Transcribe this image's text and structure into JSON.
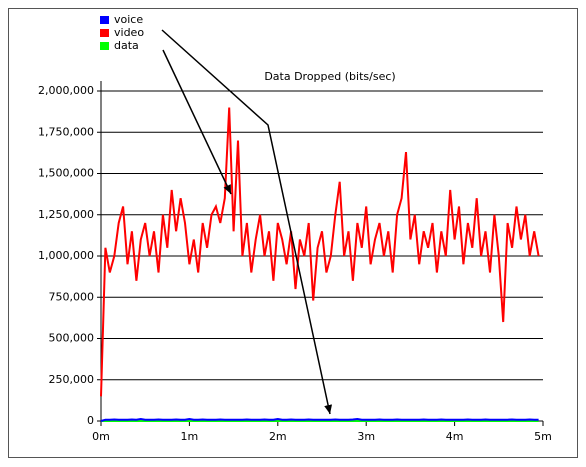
{
  "chart_data": {
    "type": "line",
    "title": "Data Dropped (bits/sec)",
    "x": [
      0,
      0.05,
      0.1,
      0.15,
      0.2,
      0.25,
      0.3,
      0.35,
      0.4,
      0.45,
      0.5,
      0.55,
      0.6,
      0.65,
      0.7,
      0.75,
      0.8,
      0.85,
      0.9,
      0.95,
      1,
      1.05,
      1.1,
      1.15,
      1.2,
      1.25,
      1.3,
      1.35,
      1.4,
      1.45,
      1.5,
      1.55,
      1.6,
      1.65,
      1.7,
      1.75,
      1.8,
      1.85,
      1.9,
      1.95,
      2,
      2.05,
      2.1,
      2.15,
      2.2,
      2.25,
      2.3,
      2.35,
      2.4,
      2.45,
      2.5,
      2.55,
      2.6,
      2.65,
      2.7,
      2.75,
      2.8,
      2.85,
      2.9,
      2.95,
      3,
      3.05,
      3.1,
      3.15,
      3.2,
      3.25,
      3.3,
      3.35,
      3.4,
      3.45,
      3.5,
      3.55,
      3.6,
      3.65,
      3.7,
      3.75,
      3.8,
      3.85,
      3.9,
      3.95,
      4,
      4.05,
      4.1,
      4.15,
      4.2,
      4.25,
      4.3,
      4.35,
      4.4,
      4.45,
      4.5,
      4.55,
      4.6,
      4.65,
      4.7,
      4.75,
      4.8,
      4.85,
      4.9,
      4.95
    ],
    "series": [
      {
        "name": "voice",
        "color": "#0000ff",
        "values": [
          0,
          8000,
          8000,
          9000,
          8000,
          8000,
          8000,
          9000,
          8000,
          12000,
          8000,
          8000,
          8000,
          9000,
          8000,
          8000,
          8000,
          9000,
          8000,
          8000,
          12000,
          8000,
          8000,
          9000,
          8000,
          8000,
          8000,
          9000,
          8000,
          8000,
          8000,
          8000,
          8000,
          9000,
          8000,
          8000,
          8000,
          9000,
          8000,
          8000,
          12000,
          8000,
          8000,
          9000,
          8000,
          8000,
          8000,
          9000,
          8000,
          8000,
          8000,
          8000,
          8000,
          9000,
          8000,
          8000,
          8000,
          9000,
          12000,
          8000,
          8000,
          8000,
          8000,
          9000,
          8000,
          8000,
          8000,
          9000,
          8000,
          8000,
          8000,
          8000,
          8000,
          9000,
          8000,
          8000,
          8000,
          9000,
          8000,
          8000,
          8000,
          8000,
          8000,
          9000,
          8000,
          8000,
          8000,
          9000,
          8000,
          8000,
          8000,
          8000,
          8000,
          9000,
          8000,
          8000,
          8000,
          9000,
          8000,
          8000
        ]
      },
      {
        "name": "video",
        "color": "#ff0000",
        "values": [
          150000,
          1050000,
          900000,
          1000000,
          1200000,
          1300000,
          950000,
          1150000,
          850000,
          1100000,
          1200000,
          1000000,
          1150000,
          900000,
          1250000,
          1050000,
          1400000,
          1150000,
          1350000,
          1200000,
          950000,
          1100000,
          900000,
          1200000,
          1050000,
          1250000,
          1300000,
          1200000,
          1350000,
          1900000,
          1150000,
          1700000,
          1000000,
          1200000,
          900000,
          1100000,
          1250000,
          1000000,
          1150000,
          850000,
          1200000,
          1100000,
          950000,
          1150000,
          800000,
          1100000,
          1000000,
          1200000,
          730000,
          1050000,
          1150000,
          900000,
          1000000,
          1250000,
          1450000,
          1000000,
          1150000,
          850000,
          1200000,
          1050000,
          1300000,
          950000,
          1100000,
          1200000,
          1000000,
          1150000,
          900000,
          1250000,
          1350000,
          1630000,
          1100000,
          1250000,
          950000,
          1150000,
          1050000,
          1200000,
          900000,
          1150000,
          1000000,
          1400000,
          1100000,
          1300000,
          950000,
          1200000,
          1050000,
          1350000,
          1000000,
          1150000,
          900000,
          1250000,
          1000000,
          600000,
          1200000,
          1050000,
          1300000,
          1100000,
          1250000,
          1000000,
          1150000,
          1000000
        ]
      },
      {
        "name": "data",
        "color": "#00ff00",
        "values": [
          0,
          0,
          0,
          0,
          0,
          0,
          0,
          0,
          0,
          0,
          0,
          0,
          0,
          0,
          0,
          0,
          0,
          0,
          0,
          0,
          0,
          0,
          0,
          0,
          0,
          0,
          0,
          0,
          0,
          0,
          0,
          0,
          0,
          0,
          0,
          0,
          0,
          0,
          0,
          0,
          0,
          0,
          0,
          0,
          0,
          0,
          0,
          0,
          0,
          0,
          0,
          0,
          0,
          0,
          0,
          0,
          0,
          0,
          0,
          0,
          0,
          0,
          0,
          0,
          0,
          0,
          0,
          0,
          0,
          0,
          0,
          0,
          0,
          0,
          0,
          0,
          0,
          0,
          0,
          0,
          0,
          0,
          0,
          0,
          0,
          0,
          0,
          0,
          0,
          0,
          0,
          0,
          0,
          0,
          0,
          0,
          0,
          0,
          0,
          0
        ]
      }
    ],
    "xlim": [
      0,
      5
    ],
    "ylim": [
      0,
      2000000
    ],
    "xticks": [
      {
        "value": 0,
        "label": "0m"
      },
      {
        "value": 1,
        "label": "1m"
      },
      {
        "value": 2,
        "label": "2m"
      },
      {
        "value": 3,
        "label": "3m"
      },
      {
        "value": 4,
        "label": "4m"
      },
      {
        "value": 5,
        "label": "5m"
      }
    ],
    "yticks": [
      0,
      {
        "value": 250000,
        "label": "250,000"
      },
      {
        "value": 500000,
        "label": "500,000"
      },
      {
        "value": 750000,
        "label": "750,000"
      },
      {
        "value": 1000000,
        "label": "1,000,000"
      },
      {
        "value": 1250000,
        "label": "1,250,000"
      },
      {
        "value": 1500000,
        "label": "1,500,000"
      },
      {
        "value": 1750000,
        "label": "1,750,000"
      },
      {
        "value": 2000000,
        "label": "2,000,000"
      }
    ],
    "grid": true
  }
}
